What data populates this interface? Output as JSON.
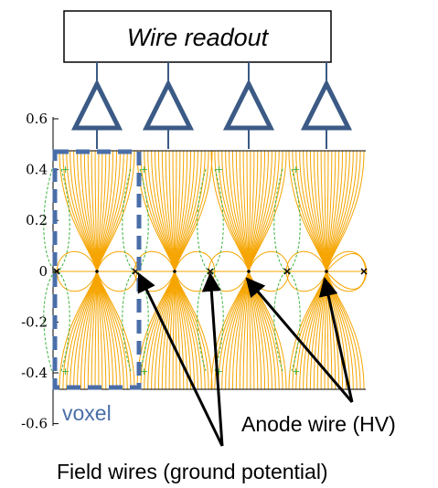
{
  "readout": {
    "label": "Wire readout"
  },
  "axis": {
    "y_ticks": [
      "0.6",
      "0.4",
      "0.2",
      "0",
      "-0.2",
      "-0.4",
      "-0.6"
    ]
  },
  "voxel": {
    "label": "voxel",
    "color": "#4a6ea8"
  },
  "annotations": {
    "anode": "Anode wire (HV)",
    "field": "Field wires (ground potential)"
  },
  "colors": {
    "field_lines": "#f6a500",
    "equipotential": "#3cb33c",
    "amplifier": "#3b5a85",
    "readout_box": "#000000"
  }
}
